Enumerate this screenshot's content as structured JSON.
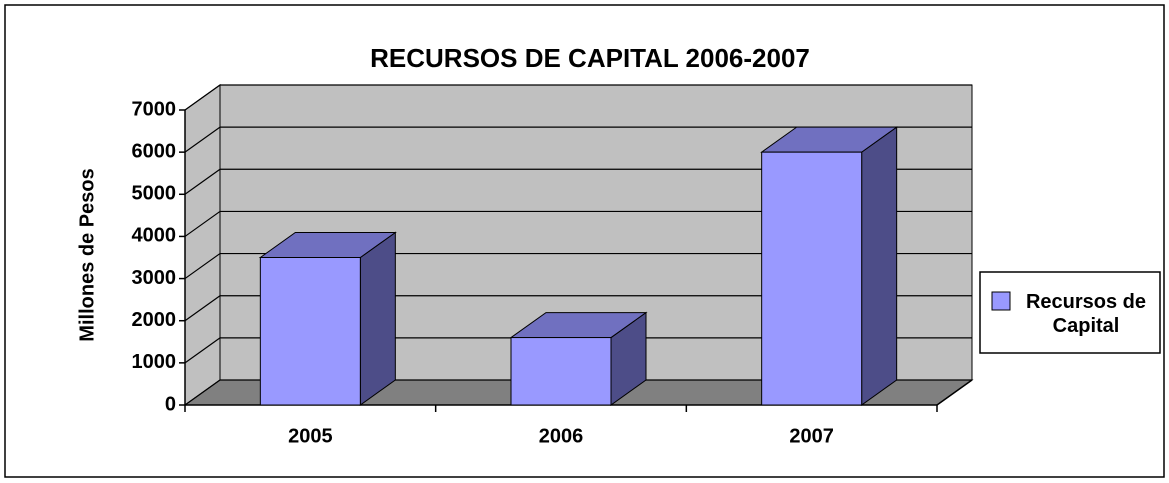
{
  "chart_data": {
    "type": "bar3d",
    "title": "RECURSOS DE CAPITAL 2006-2007",
    "y_label": "Millones de Pesos",
    "categories": [
      "2005",
      "2006",
      "2007"
    ],
    "series": [
      {
        "name": "Recursos de Capital",
        "color": "#9999ff",
        "values": [
          3500,
          1600,
          6000
        ]
      }
    ],
    "ylim": [
      0,
      7000
    ],
    "yticks": [
      0,
      1000,
      2000,
      3000,
      4000,
      5000,
      6000,
      7000
    ],
    "grid": true,
    "legend": "right"
  }
}
